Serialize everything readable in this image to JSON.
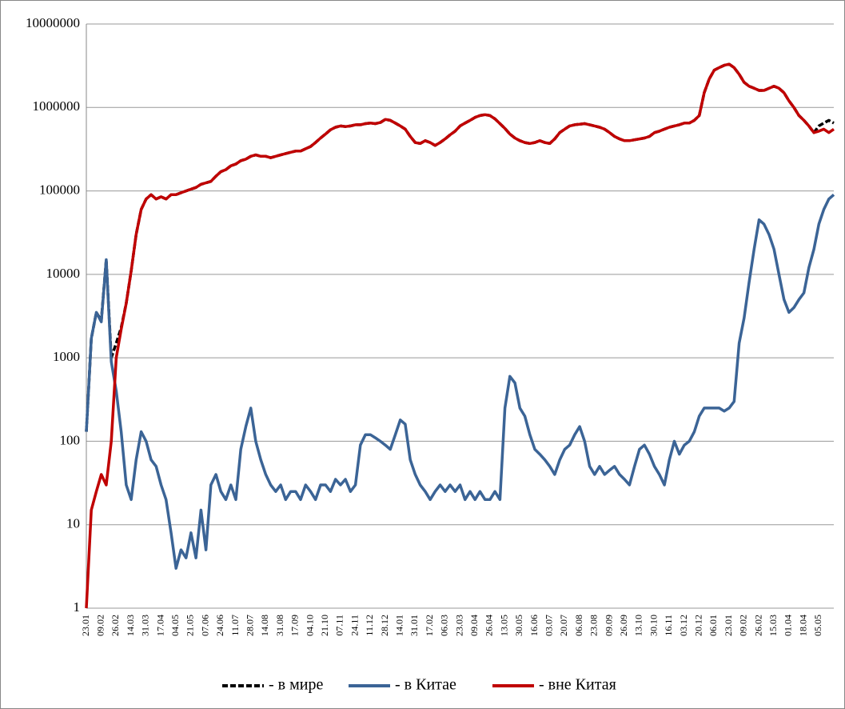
{
  "chart_data": {
    "type": "line",
    "log_y": true,
    "grid": true,
    "legend": "bottom",
    "ylim": [
      1,
      10000000
    ],
    "yticks": [
      1,
      10,
      100,
      1000,
      10000,
      100000,
      1000000,
      10000000
    ],
    "categories": [
      "23.01",
      null,
      null,
      "09.02",
      null,
      null,
      "26.02",
      null,
      null,
      "14.03",
      null,
      null,
      "31.03",
      null,
      null,
      "17.04",
      null,
      null,
      "04.05",
      null,
      null,
      "21.05",
      null,
      null,
      "07.06",
      null,
      null,
      "24.06",
      null,
      null,
      "11.07",
      null,
      null,
      "28.07",
      null,
      null,
      "14.08",
      null,
      null,
      "31.08",
      null,
      null,
      "17.09",
      null,
      null,
      "04.10",
      null,
      null,
      "21.10",
      null,
      null,
      "07.11",
      null,
      null,
      "24.11",
      null,
      null,
      "11.12",
      null,
      null,
      "28.12",
      null,
      null,
      "14.01",
      null,
      null,
      "31.01",
      null,
      null,
      "17.02",
      null,
      null,
      "06.03",
      null,
      null,
      "23.03",
      null,
      null,
      "09.04",
      null,
      null,
      "26.04",
      null,
      null,
      "13.05",
      null,
      null,
      "30.05",
      null,
      null,
      "16.06",
      null,
      null,
      "03.07",
      null,
      null,
      "20.07",
      null,
      null,
      "06.08",
      null,
      null,
      "23.08",
      null,
      null,
      "09.09",
      null,
      null,
      "26.09",
      null,
      null,
      "13.10",
      null,
      null,
      "30.10",
      null,
      null,
      "16.11",
      null,
      null,
      "03.12",
      null,
      null,
      "20.12",
      null,
      null,
      "06.01",
      null,
      null,
      "23.01",
      null,
      null,
      "09.02",
      null,
      null,
      "26.02",
      null,
      null,
      "15.03",
      null,
      null,
      "01.04",
      null,
      null,
      "18.04",
      null,
      null,
      "05.05",
      null,
      null,
      null
    ],
    "series": [
      {
        "name": "- в мире",
        "color": "#000000",
        "dash": true,
        "values": [
          130,
          1700,
          3500,
          2800,
          15000,
          1000,
          1500,
          2300,
          4500,
          11000,
          30000,
          60000,
          80000,
          90000,
          80000,
          85000,
          80000,
          90000,
          90000,
          95000,
          100000,
          105000,
          110000,
          120000,
          125000,
          130000,
          150000,
          170000,
          180000,
          200000,
          210000,
          230000,
          240000,
          260000,
          270000,
          260000,
          260000,
          250000,
          260000,
          270000,
          280000,
          290000,
          300000,
          300000,
          320000,
          340000,
          380000,
          430000,
          480000,
          540000,
          580000,
          600000,
          590000,
          600000,
          620000,
          620000,
          640000,
          650000,
          640000,
          660000,
          720000,
          700000,
          650000,
          600000,
          550000,
          450000,
          380000,
          370000,
          400000,
          380000,
          350000,
          380000,
          420000,
          470000,
          520000,
          600000,
          650000,
          700000,
          760000,
          800000,
          820000,
          800000,
          730000,
          640000,
          560000,
          480000,
          430000,
          400000,
          380000,
          370000,
          380000,
          400000,
          380000,
          370000,
          420000,
          500000,
          550000,
          600000,
          620000,
          630000,
          640000,
          620000,
          600000,
          580000,
          550000,
          500000,
          450000,
          420000,
          400000,
          400000,
          410000,
          420000,
          430000,
          450000,
          500000,
          520000,
          550000,
          580000,
          600000,
          620000,
          650000,
          650000,
          700000,
          800000,
          1500000,
          2200000,
          2800000,
          3000000,
          3200000,
          3300000,
          3000000,
          2500000,
          2000000,
          1800000,
          1700000,
          1600000,
          1600000,
          1700000,
          1800000,
          1700000,
          1500000,
          1200000,
          1000000,
          800000,
          700000,
          600000,
          500000,
          600000,
          650000,
          700000,
          650000
        ]
      },
      {
        "name": "-  в Китае",
        "color": "#3b6496",
        "values": [
          130,
          1700,
          3500,
          2700,
          15000,
          900,
          400,
          130,
          30,
          20,
          60,
          130,
          100,
          60,
          50,
          30,
          20,
          8,
          3,
          5,
          4,
          8,
          4,
          15,
          5,
          30,
          40,
          25,
          20,
          30,
          20,
          80,
          150,
          250,
          100,
          60,
          40,
          30,
          25,
          30,
          20,
          25,
          25,
          20,
          30,
          25,
          20,
          30,
          30,
          25,
          35,
          30,
          35,
          25,
          30,
          90,
          120,
          120,
          110,
          100,
          90,
          80,
          120,
          180,
          160,
          60,
          40,
          30,
          25,
          20,
          25,
          30,
          25,
          30,
          25,
          30,
          20,
          25,
          20,
          25,
          20,
          20,
          25,
          20,
          250,
          600,
          500,
          250,
          200,
          120,
          80,
          70,
          60,
          50,
          40,
          60,
          80,
          90,
          120,
          150,
          100,
          50,
          40,
          50,
          40,
          45,
          50,
          40,
          35,
          30,
          50,
          80,
          90,
          70,
          50,
          40,
          30,
          60,
          100,
          70,
          90,
          100,
          130,
          200,
          250,
          250,
          250,
          250,
          230,
          250,
          300,
          1500,
          3000,
          8000,
          20000,
          45000,
          40000,
          30000,
          20000,
          10000,
          5000,
          3500,
          4000,
          5000,
          6000,
          12000,
          20000,
          40000,
          60000,
          80000,
          90000
        ]
      },
      {
        "name": "- вне Китая",
        "color": "#c00000",
        "values": [
          1,
          15,
          25,
          40,
          30,
          100,
          1000,
          2200,
          4500,
          11000,
          30000,
          60000,
          80000,
          90000,
          80000,
          85000,
          80000,
          90000,
          90000,
          95000,
          100000,
          105000,
          110000,
          120000,
          125000,
          130000,
          150000,
          170000,
          180000,
          200000,
          210000,
          230000,
          240000,
          260000,
          270000,
          260000,
          260000,
          250000,
          260000,
          270000,
          280000,
          290000,
          300000,
          300000,
          320000,
          340000,
          380000,
          430000,
          480000,
          540000,
          580000,
          600000,
          590000,
          600000,
          620000,
          620000,
          640000,
          650000,
          640000,
          660000,
          720000,
          700000,
          650000,
          600000,
          550000,
          450000,
          380000,
          370000,
          400000,
          380000,
          350000,
          380000,
          420000,
          470000,
          520000,
          600000,
          650000,
          700000,
          760000,
          800000,
          820000,
          800000,
          730000,
          640000,
          560000,
          480000,
          430000,
          400000,
          380000,
          370000,
          380000,
          400000,
          380000,
          370000,
          420000,
          500000,
          550000,
          600000,
          620000,
          630000,
          640000,
          620000,
          600000,
          580000,
          550000,
          500000,
          450000,
          420000,
          400000,
          400000,
          410000,
          420000,
          430000,
          450000,
          500000,
          520000,
          550000,
          580000,
          600000,
          620000,
          650000,
          650000,
          700000,
          800000,
          1500000,
          2200000,
          2800000,
          3000000,
          3200000,
          3300000,
          3000000,
          2500000,
          2000000,
          1800000,
          1700000,
          1600000,
          1600000,
          1700000,
          1800000,
          1700000,
          1500000,
          1200000,
          1000000,
          800000,
          700000,
          600000,
          500000,
          520000,
          550000,
          500000,
          550000
        ]
      }
    ]
  }
}
